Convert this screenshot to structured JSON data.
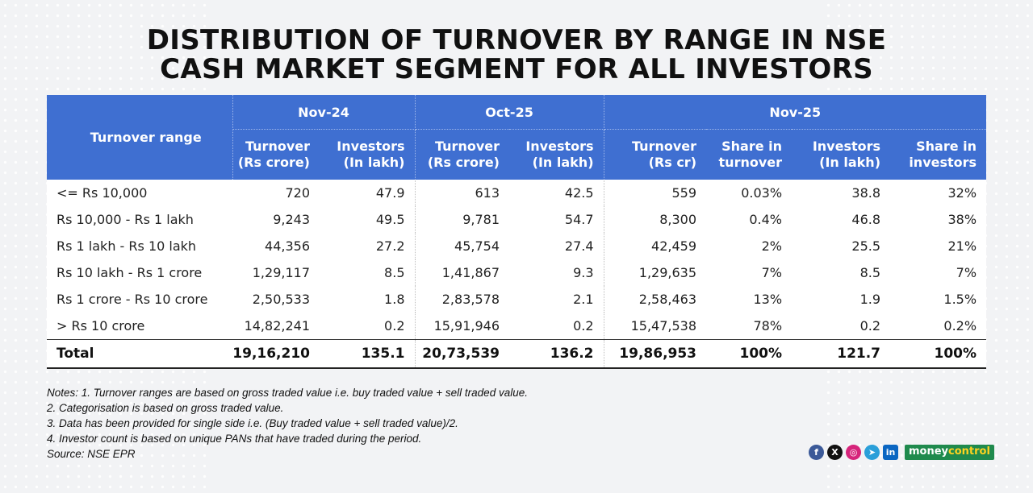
{
  "title": {
    "line1": "DISTRIBUTION OF TURNOVER BY RANGE IN NSE",
    "line2": "CASH MARKET SEGMENT FOR ALL INVESTORS"
  },
  "chart_data": {
    "type": "table",
    "row_header": "Turnover range",
    "groups": [
      "Nov-24",
      "Oct-25",
      "Nov-25"
    ],
    "columns": [
      {
        "group": "Nov-24",
        "line1": "Turnover",
        "line2": "(Rs crore)"
      },
      {
        "group": "Nov-24",
        "line1": "Investors",
        "line2": "(In lakh)"
      },
      {
        "group": "Oct-25",
        "line1": "Turnover",
        "line2": "(Rs crore)"
      },
      {
        "group": "Oct-25",
        "line1": "Investors",
        "line2": "(In lakh)"
      },
      {
        "group": "Nov-25",
        "line1": "Turnover",
        "line2": "(Rs cr)"
      },
      {
        "group": "Nov-25",
        "line1": "Share in",
        "line2": "turnover"
      },
      {
        "group": "Nov-25",
        "line1": "Investors",
        "line2": "(In lakh)"
      },
      {
        "group": "Nov-25",
        "line1": "Share in",
        "line2": "investors"
      }
    ],
    "rows": [
      {
        "label": "<= Rs 10,000",
        "values": [
          "720",
          "47.9",
          "613",
          "42.5",
          "559",
          "0.03%",
          "38.8",
          "32%"
        ]
      },
      {
        "label": "Rs 10,000 - Rs 1 lakh",
        "values": [
          "9,243",
          "49.5",
          "9,781",
          "54.7",
          "8,300",
          "0.4%",
          "46.8",
          "38%"
        ]
      },
      {
        "label": "Rs 1 lakh - Rs 10 lakh",
        "values": [
          "44,356",
          "27.2",
          "45,754",
          "27.4",
          "42,459",
          "2%",
          "25.5",
          "21%"
        ]
      },
      {
        "label": "Rs 10 lakh - Rs 1 crore",
        "values": [
          "1,29,117",
          "8.5",
          "1,41,867",
          "9.3",
          "1,29,635",
          "7%",
          "8.5",
          "7%"
        ]
      },
      {
        "label": "Rs 1 crore - Rs 10 crore",
        "values": [
          "2,50,533",
          "1.8",
          "2,83,578",
          "2.1",
          "2,58,463",
          "13%",
          "1.9",
          "1.5%"
        ]
      },
      {
        "label": "> Rs 10 crore",
        "values": [
          "14,82,241",
          "0.2",
          "15,91,946",
          "0.2",
          "15,47,538",
          "78%",
          "0.2",
          "0.2%"
        ]
      }
    ],
    "total": {
      "label": "Total",
      "values": [
        "19,16,210",
        "135.1",
        "20,73,539",
        "136.2",
        "19,86,953",
        "100%",
        "121.7",
        "100%"
      ]
    }
  },
  "notes": [
    "Notes: 1. Turnover ranges are based on gross traded value i.e. buy traded value + sell traded value.",
    "2. Categorisation is based on gross traded value.",
    "3. Data has been provided for single side i.e. (Buy traded value + sell traded value)/2.",
    "4. Investor count is based on unique PANs that have traded during the period.",
    "Source: NSE EPR"
  ],
  "branding": {
    "icons": [
      "facebook-icon",
      "x-icon",
      "instagram-icon",
      "telegram-icon",
      "linkedin-icon"
    ],
    "logo_part1": "money",
    "logo_part2": "control",
    "colors": {
      "header_bg": "#3f6fd1",
      "logo_bg": "#1f8a4d"
    }
  }
}
